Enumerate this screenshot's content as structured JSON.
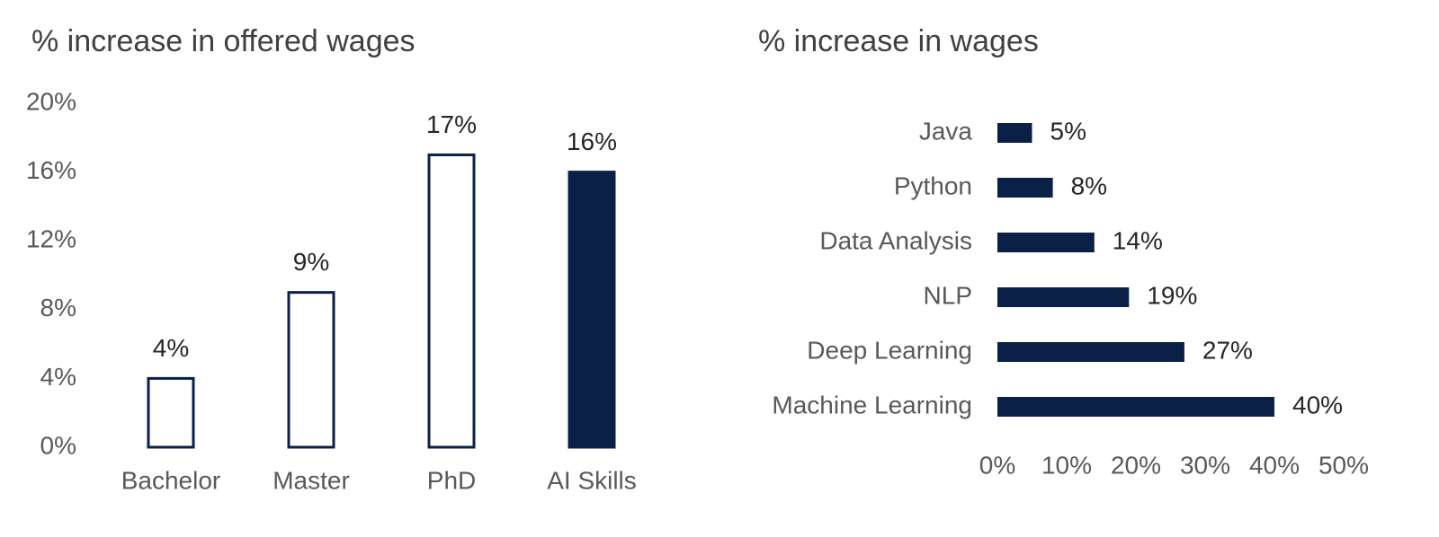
{
  "chart_data": [
    {
      "type": "bar",
      "title": "% increase in offered wages",
      "categories": [
        "Bachelor",
        "Master",
        "PhD",
        "AI Skills"
      ],
      "values": [
        4,
        9,
        17,
        16
      ],
      "value_labels": [
        "4%",
        "9%",
        "17%",
        "16%"
      ],
      "bar_fills": [
        "#ffffff",
        "#ffffff",
        "#ffffff",
        "#0b2046"
      ],
      "edge_color": "#0b2046",
      "ylim": [
        0,
        20
      ],
      "yticks": [
        {
          "value": 0,
          "label": "0%"
        },
        {
          "value": 4,
          "label": "4%"
        },
        {
          "value": 8,
          "label": "8%"
        },
        {
          "value": 12,
          "label": "12%"
        },
        {
          "value": 16,
          "label": "16%"
        },
        {
          "value": 20,
          "label": "20%"
        }
      ],
      "grid": false
    },
    {
      "type": "barh",
      "title": "% increase in wages",
      "categories": [
        "Java",
        "Python",
        "Data Analysis",
        "NLP",
        "Deep Learning",
        "Machine Learning"
      ],
      "values": [
        5,
        8,
        14,
        19,
        27,
        40
      ],
      "value_labels": [
        "5%",
        "8%",
        "14%",
        "19%",
        "27%",
        "40%"
      ],
      "color": "#0b2046",
      "xlim": [
        0,
        50
      ],
      "xticks": [
        {
          "value": 0,
          "label": "0%"
        },
        {
          "value": 10,
          "label": "10%"
        },
        {
          "value": 20,
          "label": "20%"
        },
        {
          "value": 30,
          "label": "30%"
        },
        {
          "value": 40,
          "label": "40%"
        },
        {
          "value": 50,
          "label": "50%"
        }
      ],
      "grid": false
    }
  ]
}
